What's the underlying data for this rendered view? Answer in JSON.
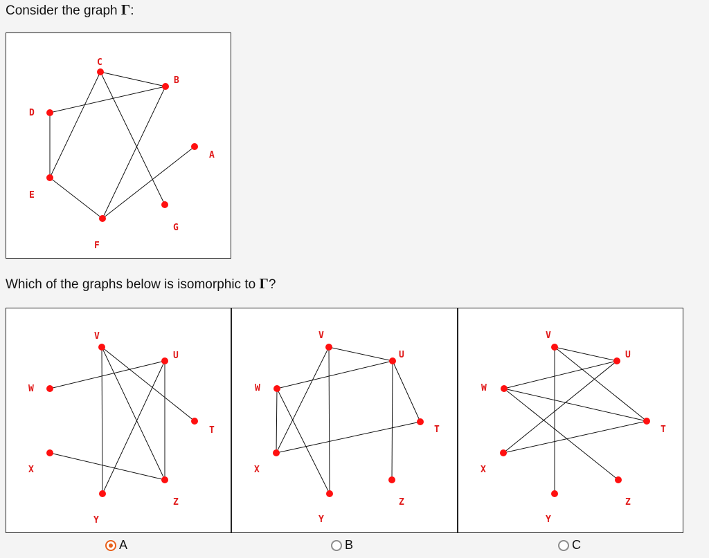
{
  "question": {
    "prompt_text": "Consider the graph",
    "symbol": "Γ",
    "prompt_suffix": ":",
    "question_text": "Which of the graphs below is isomorphic to",
    "question_suffix": "?"
  },
  "main_graph": {
    "nodes": [
      {
        "id": "C",
        "label": "C"
      },
      {
        "id": "B",
        "label": "B"
      },
      {
        "id": "D",
        "label": "D"
      },
      {
        "id": "A",
        "label": "A"
      },
      {
        "id": "E",
        "label": "E"
      },
      {
        "id": "G",
        "label": "G"
      },
      {
        "id": "F",
        "label": "F"
      }
    ],
    "edges": [
      [
        "C",
        "B"
      ],
      [
        "C",
        "E"
      ],
      [
        "C",
        "G"
      ],
      [
        "D",
        "B"
      ],
      [
        "D",
        "E"
      ],
      [
        "E",
        "F"
      ],
      [
        "F",
        "B"
      ],
      [
        "F",
        "A"
      ]
    ]
  },
  "options": [
    {
      "label": "A",
      "selected": true,
      "nodes": [
        {
          "id": "V",
          "label": "V"
        },
        {
          "id": "U",
          "label": "U"
        },
        {
          "id": "W",
          "label": "W"
        },
        {
          "id": "T",
          "label": "T"
        },
        {
          "id": "X",
          "label": "X"
        },
        {
          "id": "Z",
          "label": "Z"
        },
        {
          "id": "Y",
          "label": "Y"
        }
      ],
      "edges": [
        [
          "V",
          "Y"
        ],
        [
          "V",
          "Z"
        ],
        [
          "V",
          "T"
        ],
        [
          "W",
          "U"
        ],
        [
          "U",
          "Z"
        ],
        [
          "U",
          "Y"
        ],
        [
          "X",
          "Z"
        ]
      ]
    },
    {
      "label": "B",
      "selected": false,
      "nodes": [
        {
          "id": "V",
          "label": "V"
        },
        {
          "id": "U",
          "label": "U"
        },
        {
          "id": "W",
          "label": "W"
        },
        {
          "id": "T",
          "label": "T"
        },
        {
          "id": "X",
          "label": "X"
        },
        {
          "id": "Z",
          "label": "Z"
        },
        {
          "id": "Y",
          "label": "Y"
        }
      ],
      "edges": [
        [
          "V",
          "U"
        ],
        [
          "V",
          "Y"
        ],
        [
          "V",
          "X"
        ],
        [
          "W",
          "U"
        ],
        [
          "W",
          "X"
        ],
        [
          "W",
          "Y"
        ],
        [
          "U",
          "T"
        ],
        [
          "U",
          "Z"
        ],
        [
          "X",
          "T"
        ]
      ]
    },
    {
      "label": "C",
      "selected": false,
      "nodes": [
        {
          "id": "V",
          "label": "V"
        },
        {
          "id": "U",
          "label": "U"
        },
        {
          "id": "W",
          "label": "W"
        },
        {
          "id": "T",
          "label": "T"
        },
        {
          "id": "X",
          "label": "X"
        },
        {
          "id": "Z",
          "label": "Z"
        },
        {
          "id": "Y",
          "label": "Y"
        }
      ],
      "edges": [
        [
          "V",
          "U"
        ],
        [
          "V",
          "T"
        ],
        [
          "V",
          "Y"
        ],
        [
          "W",
          "U"
        ],
        [
          "W",
          "T"
        ],
        [
          "W",
          "Z"
        ],
        [
          "X",
          "U"
        ],
        [
          "X",
          "T"
        ]
      ]
    }
  ],
  "colors": {
    "node": "#ff1010",
    "label": "#e01818",
    "edge": "#111111",
    "radio_selected": "#e8601a"
  }
}
